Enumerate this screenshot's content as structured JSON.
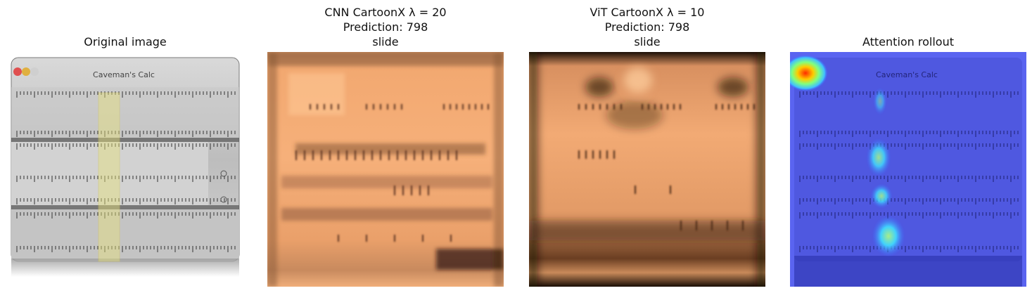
{
  "panels": [
    {
      "title": "Original image",
      "kind": "original"
    },
    {
      "title": "CNN CartoonX λ = 20\nPrediction: 798\nslide",
      "kind": "cnn"
    },
    {
      "title": "ViT CartoonX λ = 10\nPrediction: 798\nslide",
      "kind": "vit"
    },
    {
      "title": "Attention rollout",
      "kind": "rollout"
    }
  ],
  "image_text": {
    "brand": "Caveman's Calc"
  }
}
